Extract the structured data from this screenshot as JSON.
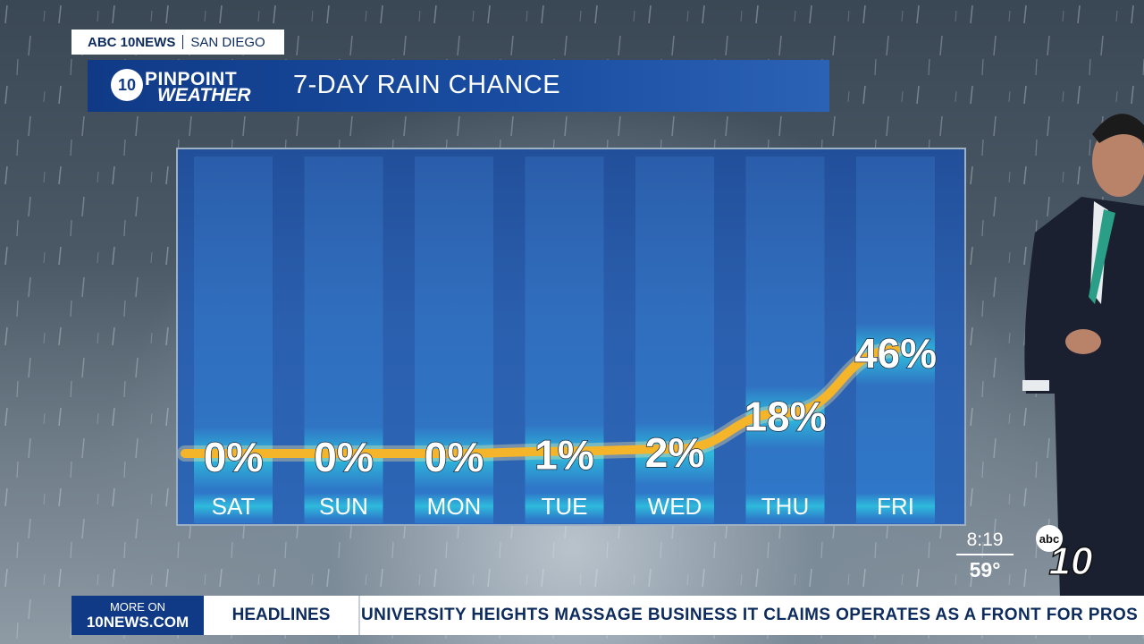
{
  "station": {
    "brand": "ABC 10NEWS",
    "city": "SAN DIEGO"
  },
  "logo": {
    "badge": "10",
    "line1": "PINPOINT",
    "line2": "WEATHER"
  },
  "graphic_title": "7-DAY RAIN CHANCE",
  "clock": {
    "time": "8:19",
    "temp": "59°"
  },
  "network_logo": {
    "abc": "abc",
    "num": "10"
  },
  "ticker": {
    "more_line1": "MORE ON",
    "more_line2": "10NEWS.COM",
    "section": "HEADLINES",
    "story": "UNIVERSITY HEIGHTS MASSAGE BUSINESS IT CLAIMS OPERATES AS A FRONT FOR PROS"
  },
  "colors": {
    "curve": "#f5b52a",
    "bar_glow": "#2ec6e0",
    "title_bar": "#103a86"
  },
  "chart_data": {
    "type": "line",
    "title": "7-DAY RAIN CHANCE",
    "categories": [
      "SAT",
      "SUN",
      "MON",
      "TUE",
      "WED",
      "THU",
      "FRI"
    ],
    "values": [
      0,
      0,
      0,
      1,
      2,
      18,
      46
    ],
    "labels": [
      "0%",
      "0%",
      "0%",
      "1%",
      "2%",
      "18%",
      "46%"
    ],
    "unit": "%",
    "ylim": [
      0,
      50
    ],
    "grid": false,
    "legend": "none"
  }
}
